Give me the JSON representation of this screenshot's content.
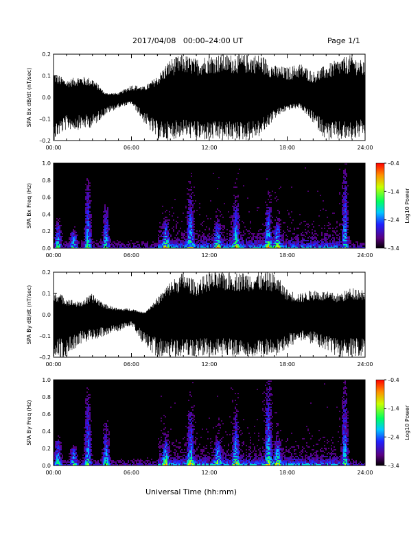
{
  "header": {
    "title": "2017/04/08   00:00–24:00 UT",
    "page": "Page 1/1"
  },
  "x_axis_title": "Universal Time (hh:mm)",
  "colors": {
    "waveform": "#000000",
    "background": "#ffffff"
  },
  "chart_data": [
    {
      "type": "line",
      "ylabel": "SPA Bx dB/dt (nT/sec)",
      "xlim": [
        0,
        24
      ],
      "ylim": [
        -0.2,
        0.2
      ],
      "x_ticks": [
        "00:00",
        "06:00",
        "12:00",
        "18:00",
        "24:00"
      ],
      "y_ticks": [
        "0.2",
        "0.1",
        "0.0",
        "–0.1",
        "–0.2"
      ],
      "series": [
        {
          "x": [
            0,
            1,
            2,
            3,
            4,
            5,
            6,
            7,
            8,
            9,
            10,
            11,
            12,
            13,
            14,
            15,
            16,
            17,
            18,
            19,
            20,
            21,
            22,
            23,
            24
          ],
          "upper": [
            0.12,
            0.08,
            0.1,
            0.09,
            0.02,
            0.02,
            0.06,
            0.05,
            0.1,
            0.18,
            0.2,
            0.18,
            0.2,
            0.2,
            0.2,
            0.2,
            0.2,
            0.15,
            0.14,
            0.16,
            0.12,
            0.15,
            0.18,
            0.2,
            0.16
          ],
          "lower": [
            -0.2,
            -0.15,
            -0.15,
            -0.14,
            -0.08,
            -0.05,
            -0.03,
            -0.12,
            -0.2,
            -0.2,
            -0.18,
            -0.2,
            -0.2,
            -0.2,
            -0.2,
            -0.2,
            -0.18,
            -0.1,
            -0.06,
            -0.05,
            -0.12,
            -0.2,
            -0.2,
            -0.2,
            -0.18
          ]
        }
      ]
    },
    {
      "type": "heatmap",
      "ylabel": "SPA Bx Freq (Hz)",
      "xlim": [
        0,
        24
      ],
      "ylim": [
        0,
        1
      ],
      "x_ticks": [
        "00:00",
        "06:00",
        "12:00",
        "18:00",
        "24:00"
      ],
      "y_ticks": [
        "1.0",
        "0.8",
        "0.6",
        "0.4",
        "0.2",
        "0.0"
      ],
      "colorbar": {
        "label": "Log10 Power",
        "range": [
          -3.4,
          -0.4
        ],
        "ticks": [
          "–0.4",
          "–1.4",
          "–2.4",
          "–3.4"
        ]
      },
      "bursts_hours": [
        0.3,
        1.5,
        2.6,
        4.0,
        8.6,
        10.5,
        12.6,
        14.0,
        16.5,
        17.2,
        22.4
      ],
      "bursts_peak_hz": [
        0.3,
        0.2,
        0.8,
        0.5,
        0.3,
        0.6,
        0.3,
        0.5,
        0.5,
        0.3,
        1.0
      ]
    },
    {
      "type": "line",
      "ylabel": "SPA By dB/dt (nT/sec)",
      "xlim": [
        0,
        24
      ],
      "ylim": [
        -0.2,
        0.2
      ],
      "x_ticks": [
        "00:00",
        "06:00",
        "12:00",
        "18:00",
        "24:00"
      ],
      "y_ticks": [
        "0.2",
        "0.1",
        "0.0",
        "–0.1",
        "–0.2"
      ],
      "series": [
        {
          "x": [
            0,
            1,
            2,
            3,
            4,
            5,
            6,
            7,
            8,
            9,
            10,
            11,
            12,
            13,
            14,
            15,
            16,
            17,
            18,
            19,
            20,
            21,
            22,
            23,
            24
          ],
          "upper": [
            0.12,
            0.08,
            0.06,
            0.1,
            0.05,
            0.03,
            0.03,
            0.01,
            0.08,
            0.16,
            0.2,
            0.16,
            0.2,
            0.2,
            0.2,
            0.2,
            0.2,
            0.2,
            0.12,
            0.1,
            0.12,
            0.11,
            0.1,
            0.13,
            0.12
          ],
          "lower": [
            -0.2,
            -0.2,
            -0.14,
            -0.12,
            -0.1,
            -0.08,
            -0.05,
            -0.15,
            -0.2,
            -0.2,
            -0.2,
            -0.2,
            -0.2,
            -0.2,
            -0.2,
            -0.2,
            -0.2,
            -0.2,
            -0.16,
            -0.12,
            -0.14,
            -0.18,
            -0.2,
            -0.2,
            -0.2
          ]
        }
      ]
    },
    {
      "type": "heatmap",
      "ylabel": "SPA By Freq (Hz)",
      "xlim": [
        0,
        24
      ],
      "ylim": [
        0,
        1
      ],
      "x_ticks": [
        "00:00",
        "06:00",
        "12:00",
        "18:00",
        "24:00"
      ],
      "y_ticks": [
        "1.0",
        "0.8",
        "0.6",
        "0.4",
        "0.2",
        "0.0"
      ],
      "colorbar": {
        "label": "Log10 Power",
        "range": [
          -3.4,
          -0.4
        ],
        "ticks": [
          "–0.4",
          "–1.4",
          "–2.4",
          "–3.4"
        ]
      },
      "bursts_hours": [
        0.3,
        1.5,
        2.6,
        4.0,
        8.6,
        10.5,
        12.6,
        14.0,
        16.5,
        17.2,
        22.4
      ],
      "bursts_peak_hz": [
        0.3,
        0.2,
        0.9,
        0.5,
        0.3,
        0.6,
        0.3,
        0.6,
        1.0,
        0.3,
        1.0
      ]
    }
  ]
}
